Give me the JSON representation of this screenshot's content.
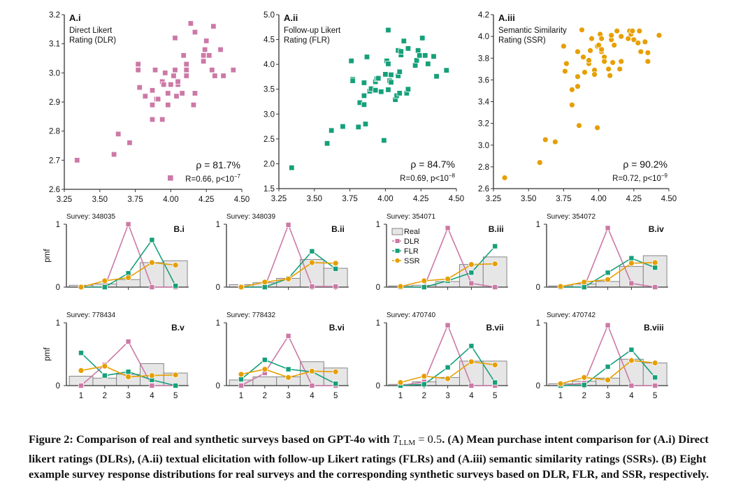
{
  "colors": {
    "DLR": "#cc79a7",
    "FLR": "#16a07a",
    "SSR": "#e69f00",
    "Real_fill": "#e6e6e6",
    "Real_edge": "#7a7a7a",
    "axis": "#333333"
  },
  "chart_data": [
    {
      "id": "A.i",
      "type": "scatter",
      "panel_label": "A.i",
      "subtitle": [
        "Direct Likert",
        "Rating (DLR)"
      ],
      "series": "DLR",
      "marker": "square",
      "xlim": [
        3.25,
        4.5
      ],
      "ylim": [
        2.6,
        3.2
      ],
      "xticks": [
        "3.25",
        "3.50",
        "3.75",
        "4.00",
        "4.25",
        "4.50"
      ],
      "yticks": [
        "2.6",
        "2.7",
        "2.8",
        "2.9",
        "3.0",
        "3.1",
        "3.2"
      ],
      "annotation_rho": "ρ = 81.7%",
      "annotation_stat": "R=0.66, p<10",
      "annotation_exp": "−7",
      "legend_marker": true,
      "points": [
        [
          3.34,
          2.7
        ],
        [
          3.6,
          2.72
        ],
        [
          3.63,
          2.79
        ],
        [
          3.71,
          2.76
        ],
        [
          3.77,
          3.01
        ],
        [
          3.77,
          3.03
        ],
        [
          3.78,
          2.95
        ],
        [
          3.82,
          2.92
        ],
        [
          3.87,
          2.94
        ],
        [
          3.87,
          2.89
        ],
        [
          3.87,
          2.84
        ],
        [
          3.89,
          3.01
        ],
        [
          3.9,
          2.91
        ],
        [
          3.91,
          2.91
        ],
        [
          3.94,
          2.84
        ],
        [
          3.94,
          2.97
        ],
        [
          3.95,
          2.96
        ],
        [
          3.96,
          3.0
        ],
        [
          3.98,
          2.93
        ],
        [
          3.98,
          2.89
        ],
        [
          4.0,
          2.96
        ],
        [
          4.02,
          2.99
        ],
        [
          4.03,
          3.12
        ],
        [
          4.03,
          3.01
        ],
        [
          4.04,
          2.92
        ],
        [
          4.05,
          2.96
        ],
        [
          4.05,
          2.97
        ],
        [
          4.08,
          2.93
        ],
        [
          4.09,
          3.06
        ],
        [
          4.11,
          3.03
        ],
        [
          4.11,
          2.99
        ],
        [
          4.11,
          3.01
        ],
        [
          4.14,
          3.17
        ],
        [
          4.16,
          2.89
        ],
        [
          4.17,
          2.93
        ],
        [
          4.17,
          3.14
        ],
        [
          4.23,
          3.04
        ],
        [
          4.23,
          3.06
        ],
        [
          4.24,
          3.08
        ],
        [
          4.25,
          3.11
        ],
        [
          4.27,
          3.06
        ],
        [
          4.29,
          3.01
        ],
        [
          4.3,
          3.16
        ],
        [
          4.31,
          2.99
        ],
        [
          4.35,
          3.08
        ],
        [
          4.37,
          2.99
        ],
        [
          4.44,
          3.01
        ]
      ]
    },
    {
      "id": "A.ii",
      "type": "scatter",
      "panel_label": "A.ii",
      "subtitle": [
        "Follow-up Likert",
        "Rating (FLR)"
      ],
      "series": "FLR",
      "marker": "square",
      "xlim": [
        3.25,
        4.5
      ],
      "ylim": [
        1.5,
        5.0
      ],
      "xticks": [
        "3.25",
        "3.50",
        "3.75",
        "4.00",
        "4.25",
        "4.50"
      ],
      "yticks": [
        "1.5",
        "2.0",
        "2.5",
        "3.0",
        "3.5",
        "4.0",
        "4.5",
        "5.0"
      ],
      "annotation_rho": "ρ = 84.7%",
      "annotation_stat": "R=0.69, p<10",
      "annotation_exp": "−8",
      "legend_marker": false,
      "points": [
        [
          3.34,
          1.92
        ],
        [
          3.59,
          2.41
        ],
        [
          3.62,
          2.67
        ],
        [
          3.7,
          2.75
        ],
        [
          3.76,
          4.07
        ],
        [
          3.77,
          3.7
        ],
        [
          3.77,
          3.67
        ],
        [
          3.81,
          2.74
        ],
        [
          3.82,
          3.23
        ],
        [
          3.85,
          3.63
        ],
        [
          3.85,
          3.37
        ],
        [
          3.85,
          3.19
        ],
        [
          3.86,
          2.8
        ],
        [
          3.87,
          4.15
        ],
        [
          3.89,
          3.46
        ],
        [
          3.9,
          3.51
        ],
        [
          3.93,
          3.48
        ],
        [
          3.93,
          3.65
        ],
        [
          3.94,
          3.71
        ],
        [
          3.95,
          3.72
        ],
        [
          3.97,
          3.45
        ],
        [
          3.99,
          2.47
        ],
        [
          4.0,
          3.8
        ],
        [
          4.01,
          4.07
        ],
        [
          4.02,
          4.69
        ],
        [
          4.02,
          3.49
        ],
        [
          4.02,
          4.01
        ],
        [
          4.03,
          3.67
        ],
        [
          4.04,
          3.79
        ],
        [
          4.04,
          3.64
        ],
        [
          4.07,
          3.29
        ],
        [
          4.08,
          3.37
        ],
        [
          4.09,
          4.28
        ],
        [
          4.09,
          3.77
        ],
        [
          4.1,
          3.85
        ],
        [
          4.1,
          3.42
        ],
        [
          4.11,
          4.19
        ],
        [
          4.11,
          4.26
        ],
        [
          4.13,
          4.47
        ],
        [
          4.15,
          3.42
        ],
        [
          4.16,
          3.5
        ],
        [
          4.16,
          4.32
        ],
        [
          4.21,
          3.98
        ],
        [
          4.22,
          4.08
        ],
        [
          4.23,
          4.28
        ],
        [
          4.24,
          4.18
        ],
        [
          4.26,
          4.53
        ],
        [
          4.28,
          4.18
        ],
        [
          4.3,
          4.01
        ],
        [
          4.34,
          4.16
        ],
        [
          4.36,
          3.76
        ],
        [
          4.43,
          3.88
        ]
      ]
    },
    {
      "id": "A.iii",
      "type": "scatter",
      "panel_label": "A.iii",
      "subtitle": [
        "Semantic Similarity",
        "Rating (SSR)"
      ],
      "series": "SSR",
      "marker": "circle",
      "xlim": [
        3.25,
        4.5
      ],
      "ylim": [
        2.6,
        4.2
      ],
      "xticks": [
        "3.25",
        "3.50",
        "3.75",
        "4.00",
        "4.25",
        "4.50"
      ],
      "yticks": [
        "2.6",
        "2.8",
        "3.0",
        "3.2",
        "3.4",
        "3.6",
        "3.8",
        "4.0",
        "4.2"
      ],
      "annotation_rho": "ρ = 90.2%",
      "annotation_stat": "R=0.72, p<10",
      "annotation_exp": "−9",
      "legend_marker": false,
      "points": [
        [
          3.33,
          2.7
        ],
        [
          3.58,
          2.84
        ],
        [
          3.62,
          3.05
        ],
        [
          3.69,
          3.03
        ],
        [
          3.75,
          3.91
        ],
        [
          3.76,
          3.68
        ],
        [
          3.77,
          3.75
        ],
        [
          3.81,
          3.37
        ],
        [
          3.81,
          3.51
        ],
        [
          3.85,
          3.86
        ],
        [
          3.85,
          3.63
        ],
        [
          3.85,
          3.54
        ],
        [
          3.86,
          3.18
        ],
        [
          3.88,
          4.06
        ],
        [
          3.89,
          3.81
        ],
        [
          3.9,
          3.67
        ],
        [
          3.93,
          3.75
        ],
        [
          3.93,
          3.78
        ],
        [
          3.94,
          3.87
        ],
        [
          3.95,
          3.98
        ],
        [
          3.97,
          3.69
        ],
        [
          3.97,
          3.65
        ],
        [
          3.99,
          3.16
        ],
        [
          3.99,
          3.91
        ],
        [
          4.0,
          3.92
        ],
        [
          4.01,
          4.02
        ],
        [
          4.02,
          3.86
        ],
        [
          4.02,
          3.98
        ],
        [
          4.02,
          3.88
        ],
        [
          4.04,
          3.81
        ],
        [
          4.04,
          3.77
        ],
        [
          4.07,
          3.7
        ],
        [
          4.08,
          3.64
        ],
        [
          4.09,
          3.97
        ],
        [
          4.09,
          4.01
        ],
        [
          4.1,
          3.76
        ],
        [
          4.11,
          3.92
        ],
        [
          4.13,
          4.05
        ],
        [
          4.15,
          3.7
        ],
        [
          4.16,
          3.77
        ],
        [
          4.16,
          4.0
        ],
        [
          4.21,
          3.98
        ],
        [
          4.22,
          4.05
        ],
        [
          4.23,
          4.02
        ],
        [
          4.24,
          4.05
        ],
        [
          4.25,
          3.97
        ],
        [
          4.28,
          3.94
        ],
        [
          4.29,
          4.05
        ],
        [
          4.3,
          3.86
        ],
        [
          4.33,
          3.95
        ],
        [
          4.35,
          3.85
        ],
        [
          4.35,
          3.77
        ],
        [
          4.43,
          4.01
        ]
      ]
    },
    {
      "id": "B",
      "type": "bar+line",
      "ylabel": "pmf",
      "categories": [
        "1",
        "2",
        "3",
        "4",
        "5"
      ],
      "ylim": [
        0,
        1
      ],
      "yticks": [
        "0",
        "1"
      ],
      "legend": [
        "Real",
        "DLR",
        "FLR",
        "SSR"
      ],
      "panels": [
        {
          "label": "B.i",
          "survey": "Survey: 348035",
          "Real": [
            0.03,
            0.05,
            0.12,
            0.39,
            0.42
          ],
          "DLR": [
            0,
            0,
            1.0,
            0,
            0
          ],
          "FLR": [
            0,
            0,
            0.22,
            0.75,
            0.02
          ],
          "SSR": [
            0,
            0.1,
            0.15,
            0.39,
            0.35
          ]
        },
        {
          "label": "B.ii",
          "survey": "Survey: 348039",
          "Real": [
            0.04,
            0.07,
            0.14,
            0.44,
            0.3
          ],
          "DLR": [
            0,
            0,
            0.99,
            0.01,
            0.01
          ],
          "FLR": [
            0,
            0,
            0.14,
            0.57,
            0.29
          ],
          "SSR": [
            0,
            0.08,
            0.13,
            0.39,
            0.38
          ]
        },
        {
          "label": "B.iii",
          "survey": "Survey: 354071",
          "Real": [
            0.02,
            0.03,
            0.09,
            0.36,
            0.48
          ],
          "DLR": [
            0,
            0,
            0.94,
            0.06,
            0
          ],
          "FLR": [
            0,
            0,
            0.1,
            0.23,
            0.65
          ],
          "SSR": [
            0.01,
            0.1,
            0.13,
            0.36,
            0.37
          ]
        },
        {
          "label": "B.iv",
          "survey": "Survey: 354072",
          "Real": [
            0.02,
            0.05,
            0.09,
            0.33,
            0.5
          ],
          "DLR": [
            0,
            0,
            0.94,
            0.06,
            0
          ],
          "FLR": [
            0,
            0,
            0.23,
            0.46,
            0.31
          ],
          "SSR": [
            0.01,
            0.08,
            0.12,
            0.38,
            0.39
          ]
        },
        {
          "label": "B.v",
          "survey": "Survey: 778434",
          "Real": [
            0.15,
            0.12,
            0.18,
            0.35,
            0.2
          ],
          "DLR": [
            0,
            0.33,
            0.7,
            0,
            0
          ],
          "FLR": [
            0.52,
            0.16,
            0.22,
            0.09,
            0
          ],
          "SSR": [
            0.24,
            0.31,
            0.14,
            0.16,
            0.17
          ]
        },
        {
          "label": "B.vi",
          "survey": "Survey: 778432",
          "Real": [
            0.09,
            0.14,
            0.14,
            0.38,
            0.28
          ],
          "DLR": [
            0,
            0.2,
            0.79,
            0,
            0
          ],
          "FLR": [
            0.1,
            0.41,
            0.26,
            0.22,
            0.03
          ],
          "SSR": [
            0.18,
            0.26,
            0.13,
            0.23,
            0.22
          ]
        },
        {
          "label": "B.vii",
          "survey": "Survey: 470740",
          "Real": [
            0.02,
            0.06,
            0.13,
            0.39,
            0.39
          ],
          "DLR": [
            0,
            0.06,
            0.96,
            0,
            0
          ],
          "FLR": [
            0,
            0.02,
            0.29,
            0.63,
            0.05
          ],
          "SSR": [
            0.05,
            0.15,
            0.11,
            0.38,
            0.33
          ]
        },
        {
          "label": "B.viii",
          "survey": "Survey: 470742",
          "Real": [
            0.03,
            0.07,
            0.12,
            0.42,
            0.36
          ],
          "DLR": [
            0,
            0.04,
            0.96,
            0,
            0
          ],
          "FLR": [
            0,
            0.01,
            0.3,
            0.57,
            0.13
          ],
          "SSR": [
            0.03,
            0.13,
            0.09,
            0.4,
            0.36
          ]
        }
      ]
    }
  ],
  "caption": {
    "part1": "Figure 2: Comparison of real and synthetic surveys based on GPT-4o with ",
    "math_var": "T",
    "math_sub": "LLM",
    "math_rest": " = 0.5",
    "part2": ". (A) Mean purchase intent comparison for (A.i) Direct likert ratings (DLRs), (A.ii) textual elicitation with follow-up Likert ratings (FLRs) and (A.iii) semantic similarity ratings (SSRs). (B) Eight example survey response distributions for real surveys and the corresponding synthetic surveys based on DLR, FLR, and SSR, respectively."
  }
}
